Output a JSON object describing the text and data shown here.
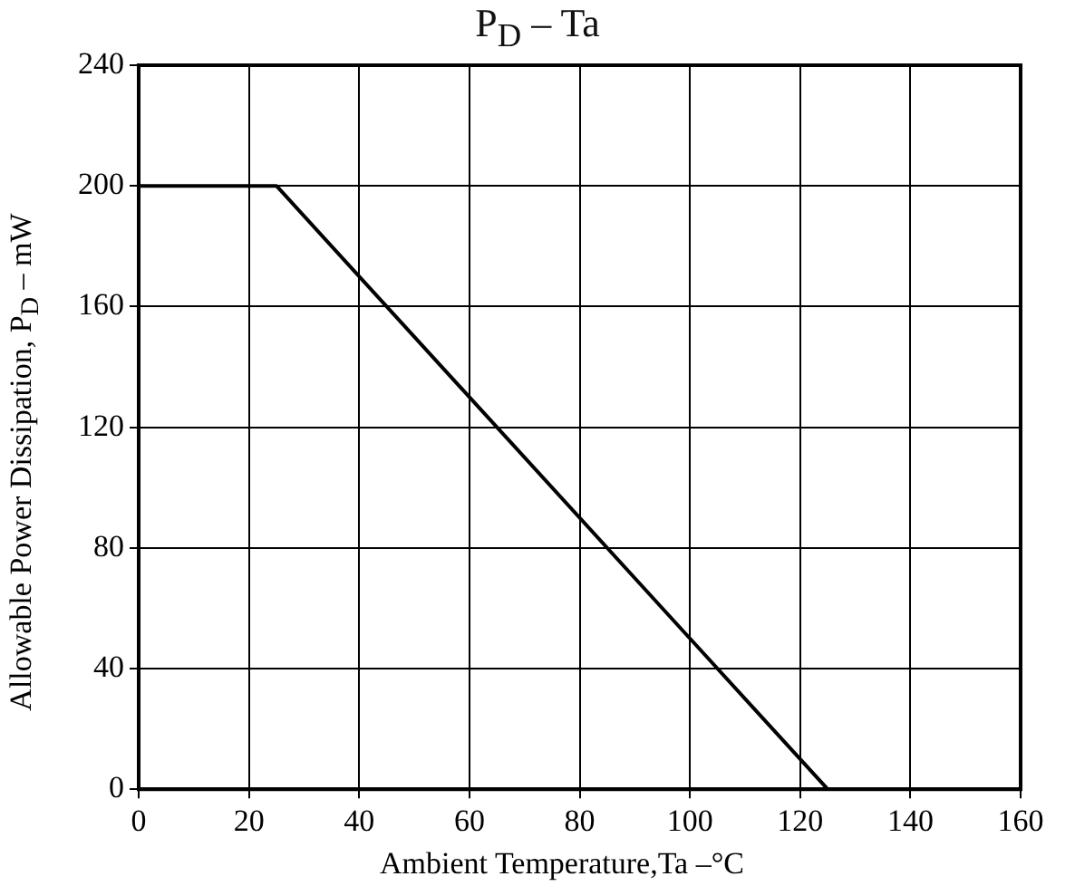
{
  "chart_data": {
    "type": "line",
    "title": "P$_{D}$ – Ta",
    "xlabel": "Ambient Temperature,Ta –°C",
    "ylabel": "Allowable Power Dissipation, P$_{D}$ – mW",
    "x": [
      0,
      25,
      125
    ],
    "series": [
      {
        "color": "#000000",
        "values": [
          200,
          200,
          0
        ]
      }
    ],
    "xlim": [
      0,
      160
    ],
    "xticks": [
      0,
      20,
      40,
      60,
      80,
      100,
      120,
      140,
      160
    ],
    "ylim": [
      0,
      240
    ],
    "yticks": [
      0,
      40,
      80,
      120,
      160,
      200,
      240
    ],
    "grid": true,
    "marker": "none",
    "line_style": "solid"
  }
}
